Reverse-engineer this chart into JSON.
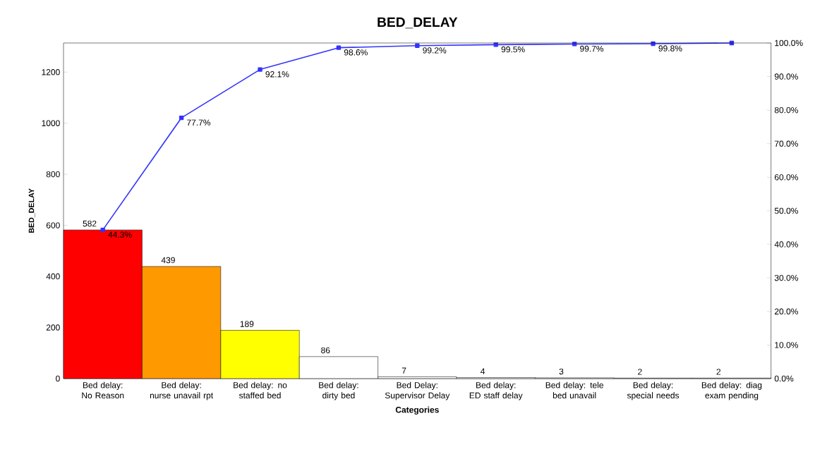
{
  "chart_data": {
    "type": "bar",
    "title": "BED_DELAY",
    "xlabel": "Categories",
    "ylabel": "BED_DELAY",
    "categories": [
      "Bed delay: No Reason",
      "Bed delay: nurse unavail rpt",
      "Bed delay: no staffed bed",
      "Bed delay: dirty bed",
      "Bed Delay: Supervisor Delay",
      "Bed delay: ED staff delay",
      "Bed delay: tele bed unavail",
      "Bed delay: special needs",
      "Bed delay: diag exam pending"
    ],
    "series": [
      {
        "colors": [
          "#ff0000",
          "#ff9900",
          "#ffff00",
          "#ffffff",
          "#ffffff",
          "#ffffff",
          "#ffffff",
          "#ffffff",
          "#ffffff"
        ],
        "values": [
          582,
          439,
          189,
          86,
          7,
          4,
          3,
          2,
          2
        ],
        "value_labels": [
          "582",
          "439",
          "189",
          "86",
          "7",
          "4",
          "3",
          "2",
          "2"
        ]
      },
      {
        "type": "line",
        "axis": "y2",
        "color": "#3333ff",
        "marker": "square",
        "line_style": "solid",
        "values": [
          44.3,
          77.7,
          92.1,
          98.6,
          99.2,
          99.5,
          99.7,
          99.8,
          100.0
        ],
        "value_labels": [
          "44.3%",
          "77.7%",
          "92.1%",
          "98.6%",
          "99.2%",
          "99.5%",
          "99.7%",
          "99.8%",
          null
        ]
      }
    ],
    "ylim": [
      0,
      1314
    ],
    "yticks": [
      0,
      200,
      400,
      600,
      800,
      1000,
      1200
    ],
    "y2lim": [
      0,
      100
    ],
    "y2ticks": [
      {
        "value": 0,
        "label": "0.0%"
      },
      {
        "value": 10,
        "label": "10.0%"
      },
      {
        "value": 20,
        "label": "20.0%"
      },
      {
        "value": 30,
        "label": "30.0%"
      },
      {
        "value": 40,
        "label": "40.0%"
      },
      {
        "value": 50,
        "label": "50.0%"
      },
      {
        "value": 60,
        "label": "60.0%"
      },
      {
        "value": 70,
        "label": "70.0%"
      },
      {
        "value": 80,
        "label": "80.0%"
      },
      {
        "value": 90,
        "label": "90.0%"
      },
      {
        "value": 100,
        "label": "100.0%"
      }
    ],
    "grid": false
  }
}
